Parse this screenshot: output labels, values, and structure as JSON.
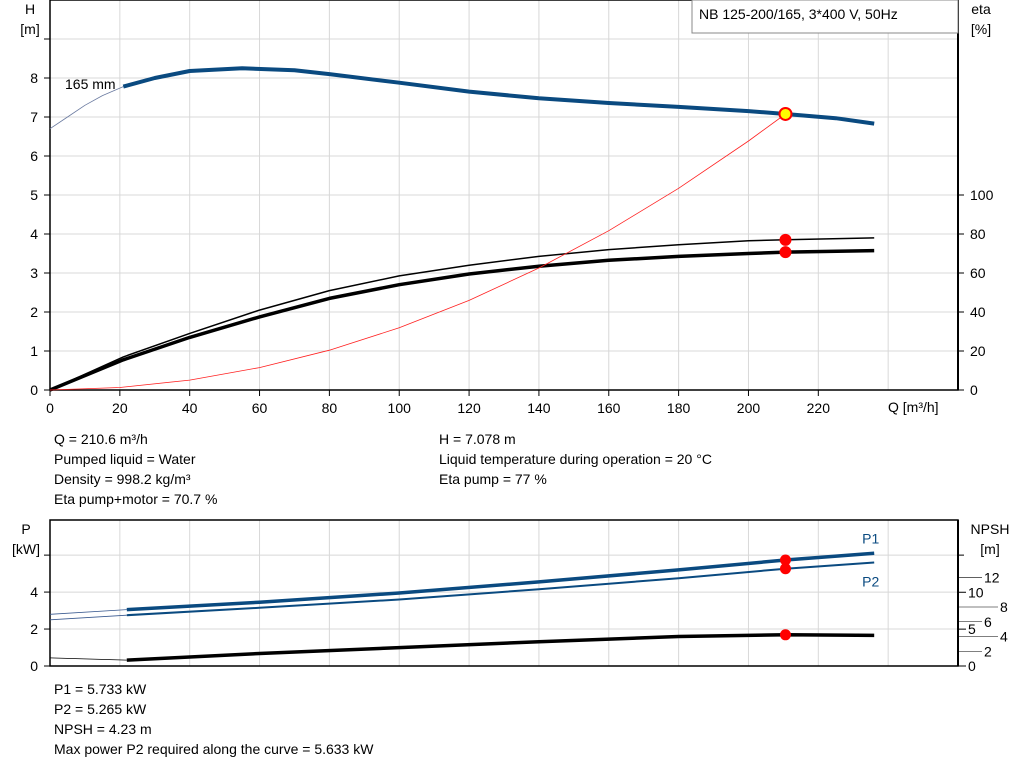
{
  "title": "NB 125-200/165, 3*400 V, 50Hz",
  "colors": {
    "head": "#0a4a80",
    "eta": "#000000",
    "system": "#ff2020",
    "duty_point": "#ff0000",
    "duty_point_head": "#ffff00",
    "grid": "#d8d8d8"
  },
  "chart_data": [
    {
      "type": "line",
      "xlabel": "Q [m³/h]",
      "ylabel": "H\n[m]",
      "y2label": "eta\n[%]",
      "xlim": [
        0,
        260
      ],
      "ylim": [
        0,
        10
      ],
      "y2lim": [
        0,
        200
      ],
      "grid": true,
      "xticks": [
        0,
        20,
        40,
        60,
        80,
        100,
        120,
        140,
        160,
        180,
        200,
        220
      ],
      "yticks": [
        0,
        1,
        2,
        3,
        4,
        5,
        6,
        7,
        8
      ],
      "y2ticks": [
        0,
        20,
        40,
        60,
        80,
        100
      ],
      "annotation": "165 mm",
      "series": [
        {
          "axis": "H",
          "style": "thin",
          "points": [
            [
              0,
              6.7
            ],
            [
              5,
              7.0
            ],
            [
              10,
              7.3
            ],
            [
              15,
              7.55
            ],
            [
              21,
              7.78
            ]
          ]
        },
        {
          "axis": "H",
          "style": "thick",
          "points": [
            [
              21,
              7.78
            ],
            [
              30,
              8.0
            ],
            [
              40,
              8.18
            ],
            [
              55,
              8.25
            ],
            [
              70,
              8.2
            ],
            [
              80,
              8.1
            ],
            [
              100,
              7.88
            ],
            [
              120,
              7.65
            ],
            [
              140,
              7.48
            ],
            [
              160,
              7.36
            ],
            [
              180,
              7.26
            ],
            [
              200,
              7.15
            ],
            [
              210.6,
              7.078
            ],
            [
              225,
              6.97
            ],
            [
              236,
              6.83
            ]
          ]
        },
        {
          "axis": "eta",
          "style": "thin",
          "points": [
            [
              0,
              0
            ],
            [
              21,
              17
            ],
            [
              40,
              29
            ],
            [
              60,
              41
            ],
            [
              80,
              51
            ],
            [
              100,
              58.5
            ],
            [
              120,
              64
            ],
            [
              140,
              68.5
            ],
            [
              160,
              72
            ],
            [
              180,
              74.5
            ],
            [
              200,
              76.5
            ],
            [
              210.6,
              77
            ],
            [
              236,
              78
            ]
          ]
        },
        {
          "axis": "eta",
          "style": "thick",
          "points": [
            [
              0,
              0
            ],
            [
              21,
              15.5
            ],
            [
              40,
              27
            ],
            [
              60,
              37.5
            ],
            [
              80,
              47
            ],
            [
              100,
              54
            ],
            [
              120,
              59.5
            ],
            [
              140,
              63.5
            ],
            [
              160,
              66.5
            ],
            [
              180,
              68.5
            ],
            [
              200,
              70
            ],
            [
              210.6,
              70.7
            ],
            [
              236,
              71.5
            ]
          ]
        },
        {
          "axis": "H",
          "style": "system",
          "points": [
            [
              0,
              0
            ],
            [
              20,
              0.064
            ],
            [
              40,
              0.255
            ],
            [
              60,
              0.574
            ],
            [
              80,
              1.021
            ],
            [
              100,
              1.596
            ],
            [
              120,
              2.298
            ],
            [
              140,
              3.128
            ],
            [
              160,
              4.085
            ],
            [
              180,
              5.171
            ],
            [
              200,
              6.384
            ],
            [
              210.6,
              7.078
            ]
          ]
        }
      ],
      "duty_points": [
        {
          "axis": "H",
          "q": 210.6,
          "v": 7.078,
          "kind": "head"
        },
        {
          "axis": "eta",
          "q": 210.6,
          "v": 77
        },
        {
          "axis": "eta",
          "q": 210.6,
          "v": 70.7
        }
      ]
    },
    {
      "type": "line",
      "ylabel": "P\n[kW]",
      "y2label": "NPSH\n[m]",
      "xlim": [
        0,
        260
      ],
      "ylim": [
        0,
        7.9
      ],
      "y2lim": [
        0,
        19.8
      ],
      "grid": true,
      "yticks": [
        0,
        2,
        4
      ],
      "y2ticks": [
        0,
        2,
        4,
        5,
        6,
        8,
        10,
        12
      ],
      "series": [
        {
          "name": "P1",
          "axis": "P",
          "points": [
            [
              0,
              2.8
            ],
            [
              22,
              3.05
            ],
            [
              60,
              3.45
            ],
            [
              100,
              3.95
            ],
            [
              140,
              4.55
            ],
            [
              180,
              5.2
            ],
            [
              210.6,
              5.733
            ],
            [
              236,
              6.1
            ]
          ]
        },
        {
          "name": "P2",
          "axis": "P",
          "points": [
            [
              0,
              2.5
            ],
            [
              22,
              2.75
            ],
            [
              60,
              3.15
            ],
            [
              100,
              3.6
            ],
            [
              140,
              4.15
            ],
            [
              180,
              4.75
            ],
            [
              210.6,
              5.265
            ],
            [
              236,
              5.6
            ]
          ]
        },
        {
          "axis": "NPSH",
          "points": [
            [
              0,
              1.1
            ],
            [
              22,
              0.8
            ],
            [
              60,
              1.7
            ],
            [
              100,
              2.5
            ],
            [
              140,
              3.3
            ],
            [
              180,
              4.0
            ],
            [
              210.6,
              4.23
            ],
            [
              236,
              4.15
            ]
          ]
        }
      ],
      "duty_points": [
        {
          "axis": "P",
          "q": 210.6,
          "v": 5.733
        },
        {
          "axis": "P",
          "q": 210.6,
          "v": 5.265
        },
        {
          "axis": "NPSH",
          "q": 210.6,
          "v": 4.23
        }
      ]
    }
  ],
  "info_top_left": [
    "Q = 210.6 m³/h",
    "Pumped liquid = Water",
    "Density = 998.2 kg/m³",
    "Eta pump+motor = 70.7 %"
  ],
  "info_top_right": [
    "H = 7.078 m",
    "Liquid temperature during operation = 20 °C",
    "Eta pump = 77 %"
  ],
  "info_bottom": [
    "P1 = 5.733 kW",
    "P2 = 5.265 kW",
    "NPSH = 4.23 m",
    "Max power P2 required along the curve = 5.633 kW"
  ]
}
